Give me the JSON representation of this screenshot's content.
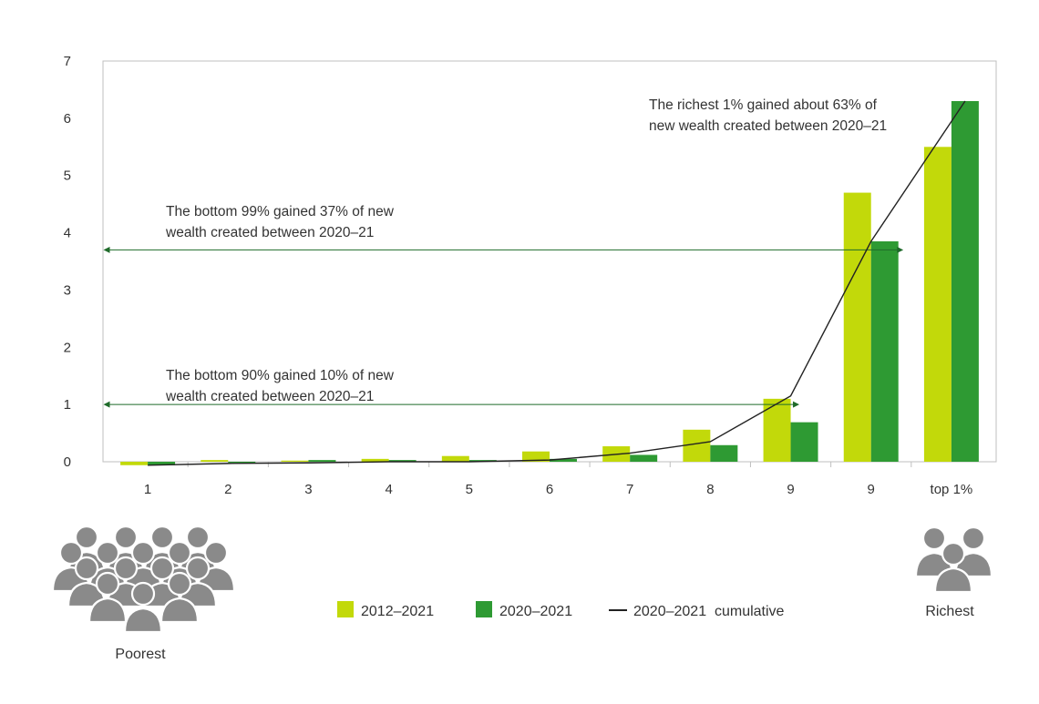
{
  "chart_data": {
    "type": "bar",
    "categories": [
      "1",
      "2",
      "3",
      "4",
      "5",
      "6",
      "7",
      "8",
      "9",
      "9",
      "top 1%"
    ],
    "ylim": [
      0,
      7
    ],
    "yticks": [
      "0",
      "1",
      "2",
      "3",
      "4",
      "5",
      "6",
      "7"
    ],
    "grid": false,
    "series": [
      {
        "name": "2012–2021",
        "color": "#c2d90a",
        "values": [
          -0.06,
          0.03,
          0.02,
          0.05,
          0.1,
          0.18,
          0.27,
          0.56,
          1.1,
          4.7,
          5.5
        ]
      },
      {
        "name": "2020–2021",
        "color": "#2e9a33",
        "values": [
          -0.06,
          -0.02,
          0.03,
          0.03,
          0.03,
          0.05,
          0.12,
          0.29,
          0.69,
          3.85,
          6.3
        ]
      },
      {
        "name": "2020–2021  cumulative",
        "type": "line",
        "color": "#222222",
        "values": [
          -0.06,
          -0.03,
          -0.02,
          0.0,
          0.0,
          0.03,
          0.15,
          0.35,
          1.15,
          3.85,
          6.3
        ]
      }
    ],
    "annotations": [
      {
        "name": "richest",
        "lines": [
          "The richest 1% gained about 63% of",
          "new wealth created between 2020–21"
        ]
      },
      {
        "name": "bottom99",
        "lines": [
          "The bottom 99% gained 37% of new",
          "wealth created between 2020–21"
        ],
        "level": 3.7
      },
      {
        "name": "bottom90",
        "lines": [
          "The bottom 90% gained 10% of new",
          "wealth created between 2020–21"
        ],
        "level": 1.0
      }
    ],
    "legend_position": "bottom-center"
  },
  "people": {
    "poorest_label": "Poorest",
    "richest_label": "Richest",
    "color": "#8a8a8a"
  }
}
